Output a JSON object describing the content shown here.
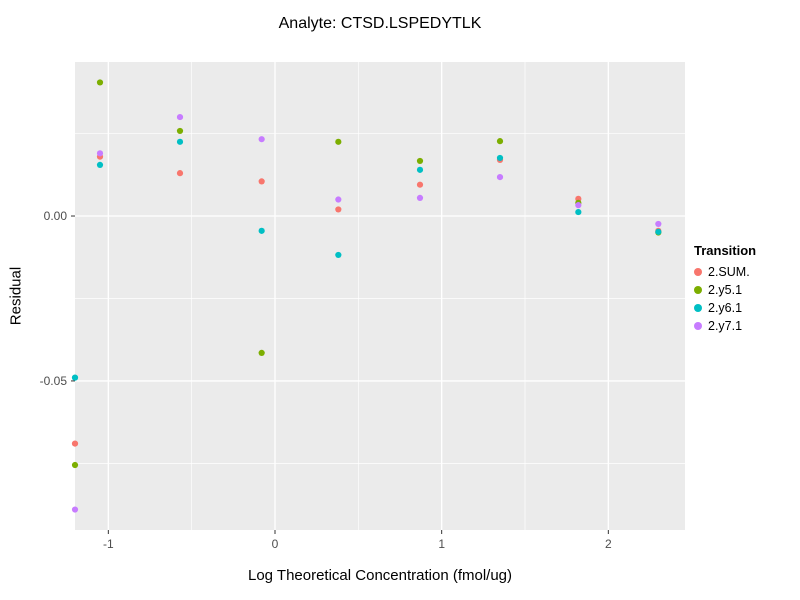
{
  "title": "Analyte: CTSD.LSPEDYTLK",
  "chart_data": {
    "type": "scatter",
    "title": "Analyte: CTSD.LSPEDYTLK",
    "xlabel": "Log Theoretical Concentration (fmol/ug)",
    "ylabel": "Residual",
    "xlim": [
      -1.2,
      2.46
    ],
    "ylim": [
      -0.0952,
      0.0467
    ],
    "grid": true,
    "panel_background": "#EBEBEB",
    "grid_color": "#FFFFFF",
    "tick_color": "#333333",
    "tick_label_color": "#4D4D4D",
    "x_major_ticks": [
      -1,
      0,
      1,
      2
    ],
    "x_tick_labels": [
      "-1",
      "0",
      "1",
      "2"
    ],
    "x_minor_ticks": [
      -0.5,
      0.5,
      1.5
    ],
    "y_major_ticks": [
      0,
      -0.05
    ],
    "y_tick_labels": [
      "0.00",
      "-0.05"
    ],
    "y_minor_ticks": [
      0.025,
      -0.025,
      -0.075
    ],
    "legend_position": "right",
    "legend_title": "Transition",
    "series": [
      {
        "name": "2.SUM.",
        "color": "#F8766D",
        "points": [
          [
            -1.2,
            -0.069
          ],
          [
            -1.05,
            0.018
          ],
          [
            -0.57,
            0.013
          ],
          [
            -0.08,
            0.0105
          ],
          [
            0.38,
            0.002
          ],
          [
            0.87,
            0.0095
          ],
          [
            1.35,
            0.017
          ],
          [
            1.82,
            0.0052
          ],
          [
            2.3,
            -0.0045
          ]
        ]
      },
      {
        "name": "2.y5.1",
        "color": "#7CAE00",
        "points": [
          [
            -1.2,
            -0.0755
          ],
          [
            -1.05,
            0.0405
          ],
          [
            -0.57,
            0.0258
          ],
          [
            -0.08,
            -0.0415
          ],
          [
            0.38,
            0.0225
          ],
          [
            0.87,
            0.0167
          ],
          [
            1.35,
            0.0227
          ],
          [
            1.82,
            0.004
          ],
          [
            2.3,
            -0.005
          ]
        ]
      },
      {
        "name": "2.y6.1",
        "color": "#00BFC4",
        "points": [
          [
            -1.2,
            -0.049
          ],
          [
            -1.05,
            0.0155
          ],
          [
            -0.57,
            0.0225
          ],
          [
            -0.08,
            -0.0045
          ],
          [
            0.38,
            -0.0118
          ],
          [
            0.87,
            0.014
          ],
          [
            1.35,
            0.0176
          ],
          [
            1.82,
            0.0012
          ],
          [
            2.3,
            -0.0048
          ]
        ]
      },
      {
        "name": "2.y7.1",
        "color": "#C77CFF",
        "points": [
          [
            -1.2,
            -0.089
          ],
          [
            -1.05,
            0.019
          ],
          [
            -0.57,
            0.03
          ],
          [
            -0.08,
            0.0233
          ],
          [
            0.38,
            0.005
          ],
          [
            0.87,
            0.0055
          ],
          [
            1.35,
            0.0118
          ],
          [
            1.82,
            0.0033
          ],
          [
            2.3,
            -0.0024
          ]
        ]
      }
    ]
  }
}
